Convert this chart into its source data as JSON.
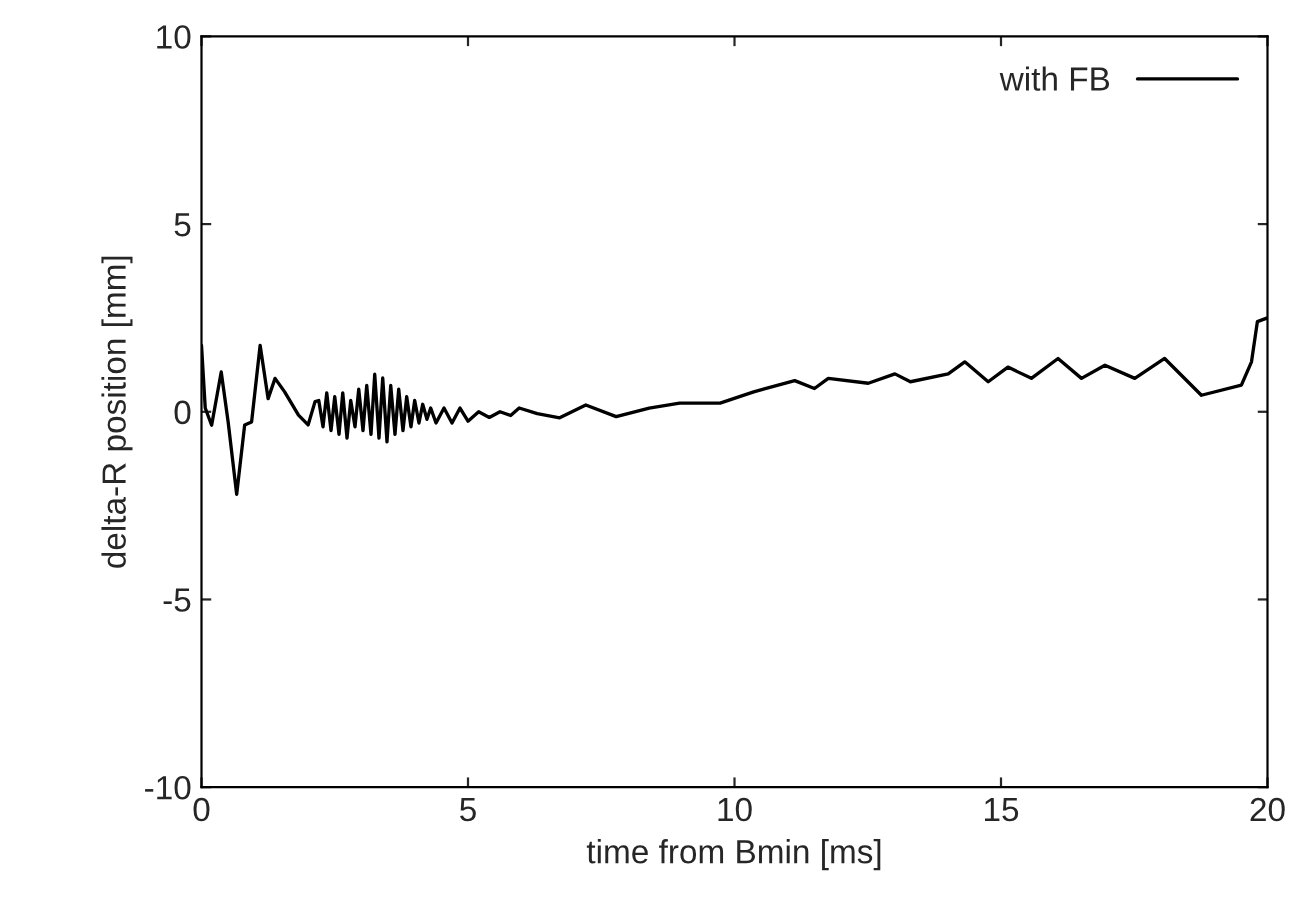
{
  "chart_data": {
    "type": "line",
    "xlabel": "time from Bmin [ms]",
    "ylabel": "delta-R position [mm]",
    "xlim": [
      0,
      20
    ],
    "ylim": [
      -10,
      10
    ],
    "xticks": [
      0,
      5,
      10,
      15,
      20
    ],
    "yticks": [
      -10,
      -5,
      0,
      5,
      10
    ],
    "grid": false,
    "legend": "top right",
    "series": [
      {
        "name": "with FB",
        "color": "#000000",
        "x": [
          0,
          0.07,
          0.19,
          0.37,
          0.5,
          0.66,
          0.81,
          0.94,
          1.1,
          1.25,
          1.38,
          1.56,
          1.82,
          2.0,
          2.13,
          2.2,
          2.28,
          2.35,
          2.43,
          2.5,
          2.58,
          2.65,
          2.73,
          2.8,
          2.88,
          2.95,
          3.03,
          3.1,
          3.18,
          3.25,
          3.33,
          3.4,
          3.48,
          3.55,
          3.63,
          3.7,
          3.78,
          3.85,
          3.93,
          4.0,
          4.08,
          4.15,
          4.23,
          4.3,
          4.4,
          4.55,
          4.7,
          4.85,
          5.0,
          5.2,
          5.4,
          5.6,
          5.8,
          5.96,
          6.3,
          6.72,
          7.21,
          7.78,
          8.4,
          8.97,
          9.73,
          10.36,
          11.13,
          11.5,
          11.76,
          12.51,
          13.01,
          13.3,
          14.01,
          14.32,
          14.76,
          15.13,
          15.57,
          16.07,
          16.51,
          16.95,
          17.51,
          18.07,
          18.76,
          19.51,
          19.7,
          19.81,
          20
        ],
        "values": [
          1.77,
          0.1,
          -0.36,
          1.06,
          -0.27,
          -2.2,
          -0.35,
          -0.27,
          1.77,
          0.35,
          0.89,
          0.53,
          -0.09,
          -0.35,
          0.27,
          0.3,
          -0.4,
          0.5,
          -0.5,
          0.4,
          -0.6,
          0.5,
          -0.7,
          0.3,
          -0.4,
          0.6,
          -0.5,
          0.7,
          -0.6,
          1.0,
          -0.7,
          0.9,
          -0.8,
          0.7,
          -0.6,
          0.6,
          -0.5,
          0.4,
          -0.4,
          0.3,
          -0.3,
          0.2,
          -0.2,
          0.1,
          -0.3,
          0.1,
          -0.3,
          0.1,
          -0.25,
          0.0,
          -0.15,
          0.0,
          -0.1,
          0.1,
          -0.05,
          -0.16,
          0.18,
          -0.13,
          0.1,
          0.23,
          0.23,
          0.53,
          0.83,
          0.62,
          0.89,
          0.76,
          1.01,
          0.8,
          1.01,
          1.33,
          0.8,
          1.19,
          0.89,
          1.42,
          0.89,
          1.24,
          0.89,
          1.42,
          0.44,
          0.71,
          1.33,
          2.4,
          2.5
        ]
      }
    ]
  }
}
